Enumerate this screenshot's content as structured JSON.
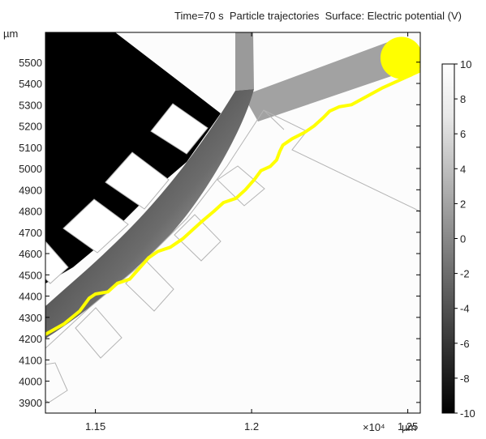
{
  "title": {
    "time": "Time=70 s",
    "trajectories": "Particle trajectories",
    "surface": "Surface: Electric potential (V)"
  },
  "chart_data": {
    "type": "heatmap",
    "title": "Time=70 s  Particle trajectories  Surface: Electric potential (V)",
    "x_unit": "µm",
    "x_multiplier": "×10⁴",
    "y_unit": "µm",
    "xlim": [
      11340,
      12540
    ],
    "ylim": [
      3850,
      5640
    ],
    "x_ticks": [
      11500,
      12000,
      12500
    ],
    "x_tick_labels": [
      "1.15",
      "1.2",
      "1.25"
    ],
    "y_ticks": [
      3900,
      4000,
      4100,
      4200,
      4300,
      4400,
      4500,
      4600,
      4700,
      4800,
      4900,
      5000,
      5100,
      5200,
      5300,
      5400,
      5500
    ],
    "colorbar": {
      "range": [
        -10,
        10
      ],
      "ticks": [
        10,
        8,
        6,
        4,
        2,
        0,
        -2,
        -4,
        -6,
        -8,
        -10
      ],
      "colormap": "grayscale"
    },
    "trajectory": {
      "color": "#ffff00",
      "points": [
        [
          11340,
          4220
        ],
        [
          11400,
          4270
        ],
        [
          11450,
          4330
        ],
        [
          11480,
          4390
        ],
        [
          11500,
          4410
        ],
        [
          11540,
          4420
        ],
        [
          11570,
          4460
        ],
        [
          11610,
          4480
        ],
        [
          11640,
          4530
        ],
        [
          11670,
          4580
        ],
        [
          11700,
          4610
        ],
        [
          11740,
          4630
        ],
        [
          11780,
          4670
        ],
        [
          11810,
          4710
        ],
        [
          11840,
          4750
        ],
        [
          11880,
          4800
        ],
        [
          11910,
          4840
        ],
        [
          11950,
          4860
        ],
        [
          11980,
          4900
        ],
        [
          12010,
          4950
        ],
        [
          12030,
          4990
        ],
        [
          12060,
          5010
        ],
        [
          12080,
          5040
        ],
        [
          12090,
          5080
        ],
        [
          12100,
          5110
        ],
        [
          12130,
          5140
        ],
        [
          12170,
          5170
        ],
        [
          12200,
          5200
        ],
        [
          12230,
          5240
        ],
        [
          12250,
          5270
        ],
        [
          12280,
          5290
        ],
        [
          12320,
          5300
        ],
        [
          12420,
          5380
        ],
        [
          12540,
          5460
        ]
      ],
      "particle": [
        12480,
        5520
      ]
    }
  },
  "colors": {
    "background": "#ffffff",
    "electrode": "#000000",
    "channel": "#9a9a9a",
    "outline": "#b4b4b4",
    "trajectory": "#ffff00",
    "particle": "#ffff00"
  }
}
